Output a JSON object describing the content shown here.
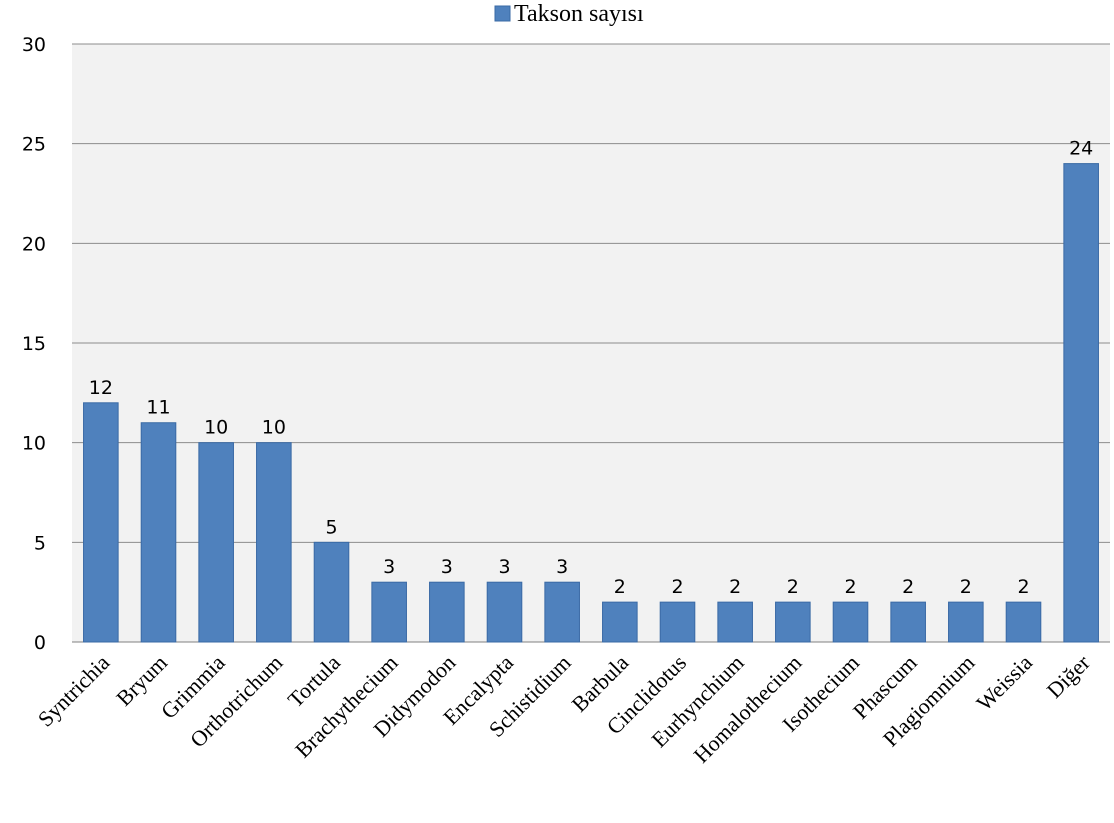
{
  "chart_data": {
    "type": "bar",
    "categories": [
      "Syntrichia",
      "Bryum",
      "Grimmia",
      "Orthotrichum",
      "Tortula",
      "Brachythecium",
      "Didymodon",
      "Encalypta",
      "Schistidium",
      "Barbula",
      "Cinclidotus",
      "Eurhynchium",
      "Homalothecium",
      "Isothecium",
      "Phascum",
      "Plagiomnium",
      "Weissia",
      "Diğer"
    ],
    "series": [
      {
        "name": "Takson sayısı",
        "values": [
          12,
          11,
          10,
          10,
          5,
          3,
          3,
          3,
          3,
          2,
          2,
          2,
          2,
          2,
          2,
          2,
          2,
          24
        ],
        "color": "#4F81BD"
      }
    ],
    "ylim": [
      0,
      30
    ],
    "yticks": [
      0,
      5,
      10,
      15,
      20,
      25,
      30
    ],
    "grid": true,
    "legend": "top-center",
    "data_labels": true
  }
}
